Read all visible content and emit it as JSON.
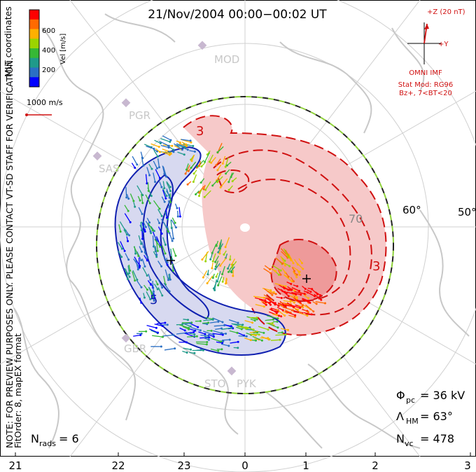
{
  "title": "21/Nov/2004 00:00−00:02 UT",
  "side_note_line1": "NOTE: FOR PREVIEW PURPOSES ONLY. PLEASE CONTACT VT-SD STAFF FOR VERIFICATION.",
  "side_note_line2": "FitOrder: 8,  mapEX format",
  "coord_label": "MLT coordinates",
  "colorbar": {
    "title": "Vel [m/s]",
    "ticks": [
      "600",
      "400",
      "200"
    ],
    "colors": [
      "#ff0000",
      "#ff6a00",
      "#ffb000",
      "#9bd400",
      "#36b836",
      "#1f9a8a",
      "#2a6fc4",
      "#0000ff"
    ]
  },
  "vector_scale_label": "1000 m/s",
  "imf": {
    "z_label": "+Z (20 nT)",
    "y_label": "+Y",
    "source_label": "OMNI IMF",
    "model_line1": "Stat Mod: RG96",
    "model_line2": "Bz+, 7<BT<20"
  },
  "latitude_labels": [
    "60°",
    "50°"
  ],
  "contour_labels": {
    "inner": "70",
    "pos3a": "3",
    "pos3b": "3",
    "neg": "5"
  },
  "stations": [
    "MOD",
    "PGR",
    "SAS",
    "GBR",
    "STO",
    "PYK"
  ],
  "mlt_ticks": [
    "21",
    "22",
    "23",
    "0",
    "1",
    "2",
    "3"
  ],
  "stats": {
    "phi_symbol": "Φ",
    "phi_sub": "pc",
    "phi_value": "= 36 kV",
    "lambda_symbol": "Λ",
    "lambda_sub": "HM",
    "lambda_value": "= 63°",
    "nvc_symbol": "N",
    "nvc_sub": "vc",
    "nvc_value": "= 478",
    "nrads_symbol": "N",
    "nrads_sub": "rads",
    "nrads_value": "= 6"
  },
  "colors": {
    "positive_cell": "#f6c9c9",
    "positive_core": "#ee9a9a",
    "negative_cell": "#d7d9f0",
    "negative_line": "#1020b0",
    "positive_line": "#d01010",
    "land": "#c8c8c8",
    "boundary_a": "#222222",
    "boundary_b": "#8fd23a"
  }
}
